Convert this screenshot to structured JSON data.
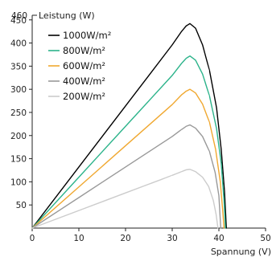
{
  "chart_data": {
    "type": "line",
    "xlabel": "Spannung (V)",
    "ylabel": "Leistung (W)",
    "xlim": [
      0,
      50
    ],
    "ylim": [
      0,
      460
    ],
    "xticks": [
      "0",
      "10",
      "20",
      "30",
      "40",
      "50"
    ],
    "yticks": [
      "50",
      "100",
      "150",
      "200",
      "250",
      "300",
      "350",
      "400",
      "450"
    ],
    "y_top_label": "460",
    "grid": false,
    "legend_position": "top-left",
    "series": [
      {
        "name": "1000W/m²",
        "color": "#000000",
        "points": [
          [
            0,
            0
          ],
          [
            10,
            132
          ],
          [
            20,
            264
          ],
          [
            30,
            396
          ],
          [
            32,
            425
          ],
          [
            33,
            437
          ],
          [
            33.8,
            442
          ],
          [
            35,
            432
          ],
          [
            36.5,
            396
          ],
          [
            38,
            340
          ],
          [
            39.5,
            260
          ],
          [
            40.5,
            170
          ],
          [
            41.2,
            80
          ],
          [
            41.6,
            0
          ]
        ]
      },
      {
        "name": "800W/m²",
        "color": "#2bb38a",
        "points": [
          [
            0,
            0
          ],
          [
            10,
            110
          ],
          [
            20,
            220
          ],
          [
            30,
            330
          ],
          [
            32,
            356
          ],
          [
            33,
            367
          ],
          [
            33.8,
            372
          ],
          [
            35,
            363
          ],
          [
            36.5,
            333
          ],
          [
            38,
            285
          ],
          [
            39.5,
            215
          ],
          [
            40.5,
            140
          ],
          [
            41.1,
            60
          ],
          [
            41.4,
            0
          ]
        ]
      },
      {
        "name": "600W/m²",
        "color": "#f0a830",
        "points": [
          [
            0,
            0
          ],
          [
            10,
            89
          ],
          [
            20,
            178
          ],
          [
            30,
            267
          ],
          [
            32,
            288
          ],
          [
            33,
            296
          ],
          [
            33.8,
            300
          ],
          [
            35,
            292
          ],
          [
            36.5,
            268
          ],
          [
            38,
            228
          ],
          [
            39.3,
            170
          ],
          [
            40.3,
            100
          ],
          [
            40.8,
            40
          ],
          [
            41.1,
            0
          ]
        ]
      },
      {
        "name": "400W/m²",
        "color": "#999999",
        "points": [
          [
            0,
            0
          ],
          [
            10,
            66
          ],
          [
            20,
            132
          ],
          [
            30,
            198
          ],
          [
            32,
            213
          ],
          [
            33,
            220
          ],
          [
            33.8,
            223
          ],
          [
            35,
            216
          ],
          [
            36.5,
            198
          ],
          [
            38,
            165
          ],
          [
            39.2,
            120
          ],
          [
            40,
            70
          ],
          [
            40.4,
            0
          ]
        ]
      },
      {
        "name": "200W/m²",
        "color": "#cccccc",
        "points": [
          [
            0,
            0
          ],
          [
            10,
            38
          ],
          [
            20,
            76
          ],
          [
            30,
            114
          ],
          [
            32,
            122
          ],
          [
            33,
            126
          ],
          [
            33.8,
            127
          ],
          [
            35,
            122
          ],
          [
            36.5,
            110
          ],
          [
            37.8,
            90
          ],
          [
            38.8,
            60
          ],
          [
            39.4,
            30
          ],
          [
            39.8,
            0
          ]
        ]
      }
    ]
  }
}
